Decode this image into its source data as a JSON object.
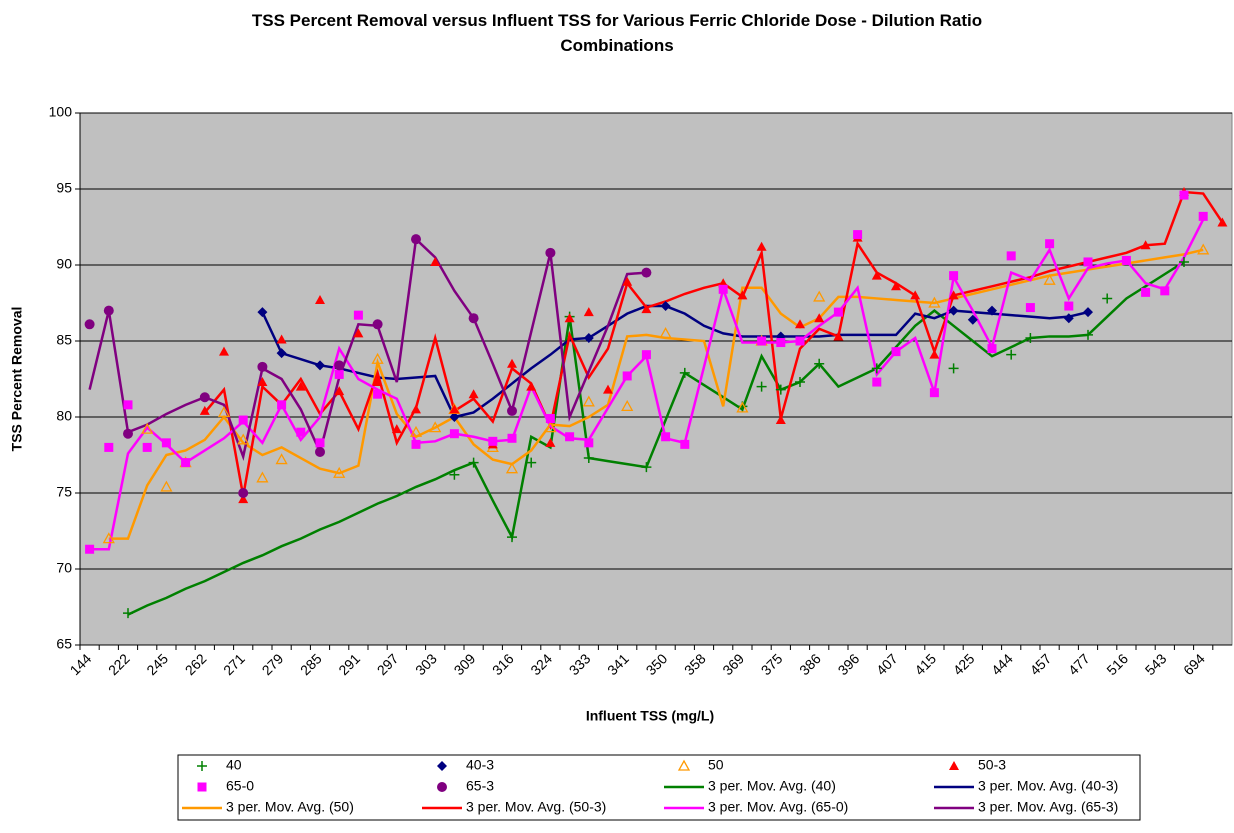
{
  "chart_data": {
    "type": "line",
    "title": "TSS Percent Removal versus Influent TSS for Various Ferric Chloride Dose - Dilution Ratio Combinations",
    "x_label": "Influent TSS (mg/L)",
    "y_label": "TSS Percent Removal",
    "categories": [
      "144",
      null,
      "222",
      null,
      "245",
      null,
      "262",
      null,
      "271",
      null,
      "279",
      null,
      "285",
      null,
      "291",
      null,
      "297",
      null,
      "303",
      null,
      "309",
      null,
      "316",
      null,
      "324",
      null,
      "333",
      null,
      "341",
      null,
      "350",
      null,
      "358",
      null,
      "369",
      null,
      "375",
      null,
      "386",
      null,
      "396",
      null,
      "407",
      null,
      "415",
      null,
      "425",
      null,
      "444",
      null,
      "457",
      null,
      "477",
      null,
      "516",
      null,
      "543",
      null,
      "694",
      null
    ],
    "ylim": [
      65,
      100
    ],
    "yticks": [
      65,
      70,
      75,
      80,
      85,
      90,
      95,
      100
    ],
    "grid": true,
    "plot_background": "#c0c0c0",
    "series": [
      {
        "name": "40",
        "color": "#008000",
        "marker": "plus",
        "values": [
          null,
          null,
          67.1,
          null,
          null,
          null,
          null,
          null,
          null,
          null,
          null,
          null,
          null,
          null,
          null,
          null,
          null,
          null,
          null,
          76.2,
          77,
          null,
          72.1,
          77,
          null,
          86.6,
          77.3,
          null,
          null,
          76.7,
          null,
          82.9,
          null,
          null,
          80.7,
          82,
          81.8,
          82.3,
          83.5,
          null,
          null,
          83.2,
          null,
          null,
          null,
          83.2,
          null,
          null,
          84.1,
          85.2,
          null,
          null,
          85.4,
          87.8,
          null,
          null,
          null,
          90.2,
          null,
          null
        ]
      },
      {
        "name": "40-3",
        "color": "#000080",
        "marker": "diamond",
        "values": [
          null,
          null,
          null,
          null,
          null,
          null,
          null,
          null,
          null,
          86.9,
          84.2,
          null,
          83.4,
          null,
          null,
          null,
          null,
          null,
          null,
          80,
          null,
          null,
          null,
          null,
          null,
          null,
          85.2,
          null,
          null,
          null,
          87.3,
          null,
          null,
          null,
          null,
          null,
          85.3,
          null,
          null,
          null,
          null,
          null,
          null,
          null,
          null,
          87,
          86.4,
          87,
          null,
          null,
          null,
          86.5,
          86.9,
          null,
          null,
          null,
          null,
          null,
          null,
          null
        ]
      },
      {
        "name": "50",
        "color": "#ff9900",
        "marker": "open-triangle",
        "values": [
          null,
          72,
          null,
          79.2,
          75.4,
          77,
          null,
          80.3,
          78.5,
          76,
          77.2,
          null,
          null,
          76.3,
          null,
          83.8,
          null,
          79,
          79.3,
          80.5,
          null,
          78,
          76.6,
          null,
          79.3,
          null,
          81,
          null,
          80.7,
          null,
          85.5,
          null,
          null,
          null,
          80.6,
          85,
          null,
          null,
          87.9,
          null,
          null,
          null,
          null,
          null,
          87.5,
          null,
          null,
          null,
          null,
          null,
          89,
          null,
          null,
          null,
          null,
          null,
          null,
          null,
          91,
          null
        ]
      },
      {
        "name": "50-3",
        "color": "#ff0000",
        "marker": "triangle",
        "values": [
          null,
          null,
          null,
          null,
          null,
          null,
          80.4,
          84.3,
          74.6,
          82.3,
          85.1,
          82,
          87.7,
          81.7,
          85.5,
          82.3,
          79.2,
          80.5,
          90.2,
          80.5,
          81.5,
          78.2,
          83.5,
          82,
          78.3,
          86.5,
          86.9,
          81.8,
          88.9,
          87.1,
          null,
          null,
          null,
          88.8,
          88,
          91.2,
          79.8,
          86.1,
          86.5,
          85.3,
          91.8,
          89.3,
          88.6,
          88,
          84.1,
          88,
          null,
          null,
          null,
          null,
          null,
          null,
          null,
          null,
          null,
          91.3,
          null,
          94.8,
          null,
          92.8
        ]
      },
      {
        "name": "65-0",
        "color": "#ff00ff",
        "marker": "square",
        "values": [
          71.3,
          78,
          80.8,
          78,
          78.3,
          77,
          null,
          null,
          79.8,
          null,
          80.8,
          79,
          78.3,
          82.8,
          86.7,
          81.5,
          null,
          78.2,
          null,
          78.9,
          null,
          78.4,
          78.6,
          null,
          79.9,
          78.7,
          78.3,
          null,
          82.7,
          84.1,
          78.7,
          78.2,
          null,
          88.4,
          null,
          85,
          84.9,
          85,
          null,
          86.9,
          92,
          82.3,
          84.3,
          null,
          81.6,
          89.3,
          null,
          84.5,
          90.6,
          87.2,
          91.4,
          87.3,
          90.2,
          null,
          90.3,
          88.2,
          88.3,
          94.6,
          93.2,
          null
        ]
      },
      {
        "name": "65-3",
        "color": "#800080",
        "marker": "circle",
        "values": [
          86.1,
          87,
          78.9,
          null,
          null,
          null,
          81.3,
          null,
          75,
          83.3,
          null,
          null,
          77.7,
          83.4,
          null,
          86.1,
          null,
          91.7,
          null,
          null,
          86.5,
          null,
          80.4,
          null,
          90.8,
          null,
          null,
          null,
          null,
          89.5,
          null,
          null,
          null,
          null,
          null,
          null,
          null,
          null,
          null,
          null,
          null,
          null,
          null,
          null,
          null,
          null,
          null,
          null,
          null,
          null,
          null,
          null,
          null,
          null,
          null,
          null,
          null,
          null,
          null,
          null
        ]
      },
      {
        "name": "3 per. Mov. Avg. (40)",
        "color": "#008000",
        "marker": "line",
        "values": [
          null,
          null,
          67,
          67.6,
          68.1,
          68.7,
          69.2,
          69.8,
          70.4,
          70.9,
          71.5,
          72,
          72.6,
          73.1,
          73.7,
          74.3,
          74.8,
          75.4,
          75.9,
          76.5,
          77,
          74.5,
          72.1,
          78.7,
          78,
          86.6,
          77.3,
          77.1,
          76.9,
          76.7,
          79.8,
          82.9,
          82.1,
          81.3,
          80.5,
          84,
          81.8,
          82.3,
          83.5,
          82,
          82.6,
          83.2,
          84.6,
          86,
          87,
          86,
          85,
          84,
          84.6,
          85.2,
          85.3,
          85.3,
          85.4,
          86.6,
          87.8,
          88.6,
          89.4,
          90.2,
          null,
          null
        ]
      },
      {
        "name": "3 per. Mov. Avg. (40-3)",
        "color": "#000080",
        "marker": "line",
        "values": [
          null,
          null,
          null,
          null,
          null,
          null,
          null,
          null,
          null,
          86.9,
          84.2,
          83.8,
          83.4,
          83.2,
          82.9,
          82.6,
          82.5,
          82.6,
          82.7,
          80,
          80.3,
          81.2,
          82.2,
          83.2,
          84.1,
          85.1,
          85.2,
          86,
          86.8,
          87.3,
          87.3,
          86.8,
          86,
          85.5,
          85.3,
          85.3,
          85.3,
          85.3,
          85.3,
          85.4,
          85.4,
          85.4,
          85.4,
          86.8,
          86.5,
          87,
          86.9,
          86.8,
          86.7,
          86.6,
          86.5,
          86.6,
          86.9,
          null,
          null,
          null,
          null,
          null,
          null,
          null
        ]
      },
      {
        "name": "3 per. Mov. Avg. (50)",
        "color": "#ff9900",
        "marker": "line",
        "values": [
          null,
          72,
          72,
          75.5,
          77.5,
          77.8,
          78.5,
          80,
          78.3,
          77.5,
          78,
          77.3,
          76.6,
          76.3,
          76.8,
          83.6,
          80.2,
          78.7,
          79.3,
          80,
          78.2,
          77.2,
          76.9,
          77.8,
          79.5,
          79.4,
          80,
          80.8,
          85.3,
          85.4,
          85.2,
          85.1,
          85,
          80.7,
          88.5,
          88.5,
          86.8,
          85.9,
          86.5,
          87.9,
          87.9,
          87.8,
          87.7,
          87.6,
          87.5,
          87.8,
          88.1,
          88.4,
          88.7,
          89,
          89.3,
          89.5,
          89.7,
          89.9,
          90.1,
          90.3,
          90.5,
          90.7,
          91,
          null
        ]
      },
      {
        "name": "3 per. Mov. Avg. (50-3)",
        "color": "#ff0000",
        "marker": "line",
        "values": [
          null,
          null,
          null,
          null,
          null,
          null,
          80.3,
          81.8,
          74.8,
          82,
          80.8,
          82.5,
          80.2,
          81.7,
          79.2,
          82.9,
          78.3,
          80.6,
          85.2,
          80.4,
          81.2,
          79.7,
          83.2,
          82.2,
          79.4,
          85.4,
          82.6,
          84.5,
          88.8,
          87.2,
          87.6,
          88.1,
          88.5,
          88.8,
          87.9,
          90.8,
          79.9,
          84.5,
          85.8,
          85.3,
          91.4,
          89.5,
          88.8,
          88,
          84.3,
          88,
          88.3,
          88.6,
          88.9,
          89.2,
          89.6,
          89.9,
          90.2,
          90.5,
          90.8,
          91.3,
          91.4,
          94.8,
          94.7,
          92.8
        ]
      },
      {
        "name": "3 per. Mov. Avg. (65-0)",
        "color": "#ff00ff",
        "marker": "line",
        "values": [
          71.3,
          71.3,
          77.6,
          79.3,
          78.2,
          77,
          77.8,
          78.6,
          79.7,
          78.3,
          80.8,
          78.5,
          80,
          84.5,
          82.5,
          81.8,
          81.2,
          78.3,
          78.4,
          78.9,
          78.7,
          78.4,
          78.5,
          82,
          79.4,
          78.6,
          78.5,
          80.6,
          82.7,
          84,
          78.6,
          78.3,
          83.3,
          88.4,
          84.9,
          84.9,
          84.9,
          85,
          86,
          86.9,
          88.5,
          82.8,
          84.3,
          85.2,
          81.6,
          89.2,
          87,
          84.6,
          89.5,
          89,
          91,
          87.8,
          89.8,
          90.1,
          90.3,
          88.8,
          88.4,
          90.5,
          93,
          null
        ]
      },
      {
        "name": "3 per. Mov. Avg. (65-3)",
        "color": "#800080",
        "marker": "line",
        "values": [
          81.8,
          87,
          79,
          79.5,
          80.2,
          80.8,
          81.3,
          80.8,
          77.4,
          83.2,
          82.5,
          80.5,
          77.7,
          82.6,
          86.1,
          86,
          82.3,
          91.7,
          90.5,
          88.3,
          86.5,
          83.5,
          80.4,
          85.6,
          90.8,
          80,
          83,
          86,
          89.4,
          89.5,
          null,
          null,
          null,
          null,
          null,
          null,
          null,
          null,
          null,
          null,
          null,
          null,
          null,
          null,
          null,
          null,
          null,
          null,
          null,
          null,
          null,
          null,
          null,
          null,
          null,
          null,
          null,
          null,
          null,
          null
        ]
      }
    ]
  }
}
